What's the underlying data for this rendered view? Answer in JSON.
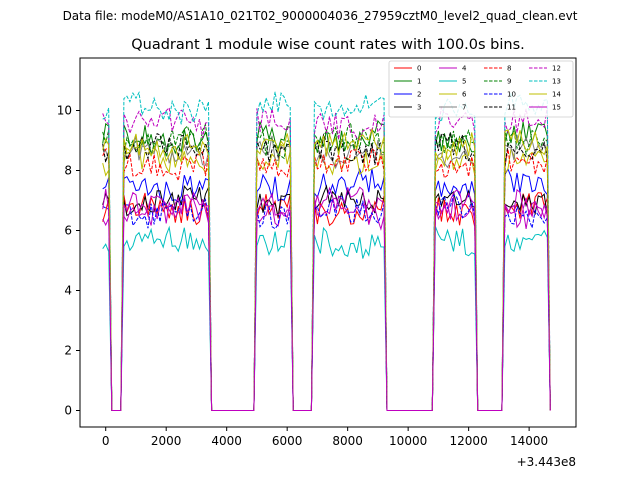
{
  "suptitle": "Data file: modeM0/AS1A10_021T02_9000004036_27959cztM0_level2_quad_clean.evt",
  "chart_data": {
    "type": "line",
    "title": "Quadrant 1 module wise count rates with 100.0s bins.",
    "xlabel": "",
    "ylabel": "",
    "x_offset_label": "+3.443e8",
    "xlim": [
      -850,
      15550
    ],
    "ylim": [
      -0.55,
      11.75
    ],
    "xticks": [
      0,
      2000,
      4000,
      6000,
      8000,
      10000,
      12000,
      14000
    ],
    "xtick_labels": [
      "0",
      "2000",
      "4000",
      "6000",
      "8000",
      "10000",
      "12000",
      "14000"
    ],
    "yticks": [
      0,
      2,
      4,
      6,
      8,
      10
    ],
    "ytick_labels": [
      "0",
      "2",
      "4",
      "6",
      "8",
      "10"
    ],
    "bin_seconds": 100,
    "grid": false,
    "legend_position": "top-right",
    "on_segments": [
      [
        -100,
        100
      ],
      [
        550,
        3400
      ],
      [
        5000,
        6150
      ],
      [
        6850,
        9250
      ],
      [
        10900,
        12200
      ],
      [
        13150,
        14650
      ]
    ],
    "series": [
      {
        "name": "0",
        "color": "#ff0000",
        "dash": "solid",
        "level": 6.7
      },
      {
        "name": "1",
        "color": "#008000",
        "dash": "solid",
        "level": 9.1
      },
      {
        "name": "2",
        "color": "#0000ff",
        "dash": "solid",
        "level": 7.5
      },
      {
        "name": "3",
        "color": "#000000",
        "dash": "solid",
        "level": 7.0
      },
      {
        "name": "4",
        "color": "#bf00bf",
        "dash": "solid",
        "level": 6.6
      },
      {
        "name": "5",
        "color": "#00bfbf",
        "dash": "solid",
        "level": 5.6
      },
      {
        "name": "6",
        "color": "#bfbf00",
        "dash": "solid",
        "level": 8.3
      },
      {
        "name": "7",
        "color": "#808080",
        "dash": "solid",
        "level": 8.6
      },
      {
        "name": "8",
        "color": "#ff0000",
        "dash": "dashed",
        "level": 8.2
      },
      {
        "name": "9",
        "color": "#008000",
        "dash": "dashed",
        "level": 9.0
      },
      {
        "name": "10",
        "color": "#0000ff",
        "dash": "dashed",
        "level": 6.6
      },
      {
        "name": "11",
        "color": "#000000",
        "dash": "dashed",
        "level": 8.7
      },
      {
        "name": "12",
        "color": "#bf00bf",
        "dash": "dashed",
        "level": 9.6
      },
      {
        "name": "13",
        "color": "#00bfbf",
        "dash": "dashed",
        "level": 10.1
      },
      {
        "name": "14",
        "color": "#bfbf00",
        "dash": "solid",
        "level": 8.9
      },
      {
        "name": "15",
        "color": "#bf00bf",
        "dash": "solid",
        "level": 6.9
      }
    ]
  }
}
